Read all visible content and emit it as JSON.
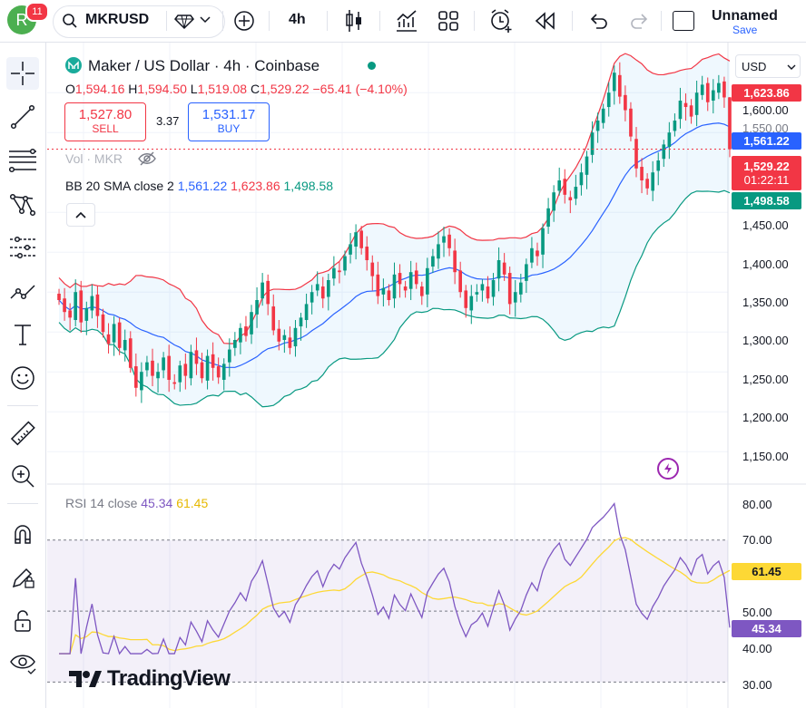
{
  "topbar": {
    "avatar_letter": "R",
    "notification_count": "11",
    "symbol": "MKRUSD",
    "interval": "4h",
    "layout_name": "Unnamed",
    "save_label": "Save"
  },
  "legend": {
    "title": "Maker / US Dollar · 4h · Coinbase",
    "ohlc": {
      "o_label": "O",
      "o": "1,594.16",
      "h_label": "H",
      "h": "1,594.50",
      "l_label": "L",
      "l": "1,519.08",
      "c_label": "C",
      "c": "1,529.22",
      "change": "−65.41 (−4.10%)"
    },
    "sell_price": "1,527.80",
    "sell_label": "SELL",
    "spread": "3.37",
    "buy_price": "1,531.17",
    "buy_label": "BUY",
    "volume_label": "Vol · MKR",
    "bb_label": "BB 20 SMA close 2",
    "bb_basis": "1,561.22",
    "bb_upper": "1,623.86",
    "bb_lower": "1,498.58",
    "rsi_label": "RSI 14 close",
    "rsi_value": "45.34",
    "rsi_ma": "61.45"
  },
  "price_axis": {
    "currency": "USD",
    "ticks": [
      "1,600.00",
      "1,550.00",
      "1,450.00",
      "1,400.00",
      "1,350.00",
      "1,300.00",
      "1,250.00",
      "1,200.00",
      "1,150.00"
    ],
    "tags": {
      "upper": "1,623.86",
      "basis": "1,561.22",
      "last": "1,529.22",
      "countdown": "01:22:11",
      "lower": "1,498.58"
    }
  },
  "rsi_axis": {
    "ticks": [
      "80.00",
      "70.00",
      "50.00",
      "40.00",
      "30.00"
    ],
    "tags": {
      "ma": "61.45",
      "rsi": "45.34"
    }
  },
  "branding": {
    "text": "TradingView"
  },
  "colors": {
    "up": "#089981",
    "down": "#f23645",
    "basis": "#2962ff",
    "upper": "#f23645",
    "lower": "#089981",
    "rsi": "#7e57c2",
    "rsi_ma": "#fdd835"
  },
  "chart_data": {
    "type": "candlestick",
    "title": "Maker / US Dollar · 4h · Coinbase",
    "ylim": [
      1140,
      1640
    ],
    "last_close": 1529.22,
    "bb": {
      "period": 20,
      "stddev": 2,
      "basis": 1561.22,
      "upper": 1623.86,
      "lower": 1498.58
    },
    "closes": [
      1340,
      1325,
      1318,
      1350,
      1312,
      1330,
      1345,
      1320,
      1300,
      1285,
      1310,
      1280,
      1290,
      1255,
      1230,
      1250,
      1262,
      1245,
      1250,
      1268,
      1240,
      1235,
      1258,
      1245,
      1275,
      1260,
      1242,
      1270,
      1255,
      1243,
      1260,
      1278,
      1290,
      1305,
      1295,
      1325,
      1340,
      1362,
      1335,
      1302,
      1288,
      1296,
      1280,
      1305,
      1318,
      1335,
      1350,
      1360,
      1342,
      1365,
      1380,
      1375,
      1395,
      1410,
      1425,
      1405,
      1390,
      1370,
      1345,
      1355,
      1340,
      1372,
      1360,
      1352,
      1375,
      1360,
      1345,
      1380,
      1395,
      1410,
      1420,
      1405,
      1375,
      1350,
      1330,
      1345,
      1350,
      1360,
      1342,
      1365,
      1390,
      1372,
      1335,
      1350,
      1362,
      1385,
      1405,
      1395,
      1430,
      1455,
      1475,
      1490,
      1472,
      1465,
      1482,
      1500,
      1520,
      1550,
      1565,
      1580,
      1600,
      1625,
      1595,
      1578,
      1545,
      1505,
      1490,
      1480,
      1500,
      1515,
      1535,
      1550,
      1565,
      1590,
      1582,
      1570,
      1600,
      1610,
      1588,
      1603,
      1612,
      1594,
      1529
    ],
    "rsi": {
      "ylim": [
        30,
        80
      ],
      "levels": [
        70,
        50,
        30
      ],
      "current": 45.34,
      "ma_current": 61.45
    }
  }
}
